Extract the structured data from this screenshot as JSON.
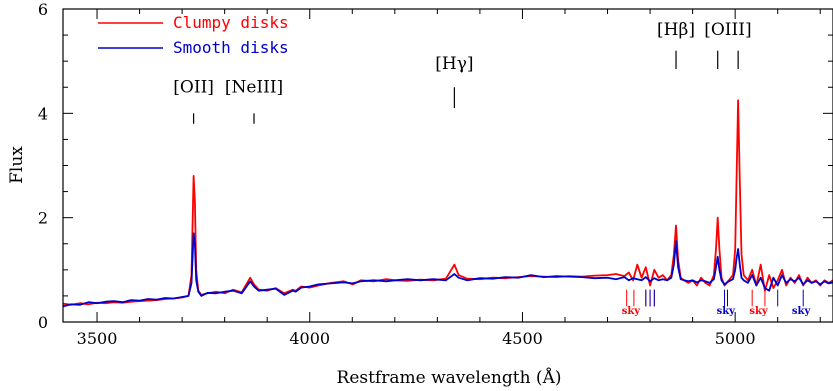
{
  "chart_data": {
    "type": "line",
    "xlabel": "Restframe wavelength (Å)",
    "ylabel": "Flux",
    "xlim": [
      3420,
      5230
    ],
    "ylim": [
      0,
      6
    ],
    "x_ticks": [
      3500,
      4000,
      4500,
      5000
    ],
    "y_ticks": [
      0,
      2,
      4,
      6
    ],
    "grid": false,
    "legend_position": "top-left",
    "colors": {
      "clumpy": "#ff0000",
      "smooth": "#0000cc"
    },
    "series": [
      {
        "name": "Clumpy disks",
        "color": "#ff0000",
        "x": [
          3420,
          3440,
          3460,
          3480,
          3500,
          3520,
          3540,
          3560,
          3580,
          3600,
          3620,
          3640,
          3660,
          3680,
          3700,
          3715,
          3722,
          3727,
          3730,
          3733,
          3738,
          3745,
          3760,
          3780,
          3800,
          3820,
          3840,
          3860,
          3869,
          3880,
          3900,
          3920,
          3940,
          3960,
          3967,
          3980,
          4000,
          4020,
          4050,
          4080,
          4101,
          4120,
          4150,
          4180,
          4200,
          4230,
          4260,
          4290,
          4320,
          4340,
          4350,
          4370,
          4400,
          4430,
          4460,
          4490,
          4520,
          4550,
          4580,
          4610,
          4640,
          4670,
          4700,
          4720,
          4740,
          4750,
          4760,
          4770,
          4780,
          4790,
          4800,
          4810,
          4820,
          4830,
          4840,
          4850,
          4856,
          4861,
          4866,
          4872,
          4880,
          4890,
          4900,
          4910,
          4920,
          4930,
          4940,
          4950,
          4955,
          4959,
          4963,
          4968,
          4975,
          4985,
          4995,
          5000,
          5003,
          5007,
          5011,
          5015,
          5020,
          5030,
          5040,
          5050,
          5060,
          5070,
          5080,
          5090,
          5100,
          5110,
          5120,
          5130,
          5140,
          5150,
          5160,
          5170,
          5180,
          5190,
          5200,
          5210,
          5220,
          5230
        ],
        "values": [
          0.35,
          0.33,
          0.36,
          0.34,
          0.37,
          0.36,
          0.38,
          0.37,
          0.39,
          0.4,
          0.41,
          0.42,
          0.44,
          0.45,
          0.47,
          0.5,
          0.9,
          2.8,
          2.3,
          1.0,
          0.6,
          0.52,
          0.55,
          0.58,
          0.55,
          0.62,
          0.57,
          0.85,
          0.72,
          0.62,
          0.6,
          0.65,
          0.55,
          0.62,
          0.6,
          0.68,
          0.66,
          0.7,
          0.75,
          0.78,
          0.72,
          0.8,
          0.78,
          0.82,
          0.8,
          0.79,
          0.81,
          0.8,
          0.83,
          1.1,
          0.9,
          0.83,
          0.82,
          0.85,
          0.84,
          0.86,
          0.88,
          0.87,
          0.86,
          0.88,
          0.87,
          0.89,
          0.9,
          0.92,
          0.88,
          0.95,
          0.8,
          1.1,
          0.85,
          1.05,
          0.7,
          1.0,
          0.85,
          0.9,
          0.8,
          0.9,
          1.3,
          1.85,
          1.2,
          0.85,
          0.8,
          0.75,
          0.8,
          0.7,
          0.85,
          0.75,
          0.7,
          0.9,
          1.4,
          2.0,
          1.4,
          0.85,
          0.7,
          0.8,
          0.9,
          1.4,
          2.6,
          4.25,
          2.7,
          1.3,
          0.9,
          0.8,
          1.0,
          0.7,
          1.1,
          0.6,
          0.9,
          0.65,
          0.8,
          1.0,
          0.7,
          0.85,
          0.75,
          0.9,
          0.7,
          0.85,
          0.75,
          0.8,
          0.7,
          0.8,
          0.75,
          0.8
        ],
        "line_labels_drawn": "see emission_lines"
      },
      {
        "name": "Smooth disks",
        "color": "#0000cc",
        "x": [
          3420,
          3440,
          3460,
          3480,
          3500,
          3520,
          3540,
          3560,
          3580,
          3600,
          3620,
          3640,
          3660,
          3680,
          3700,
          3715,
          3722,
          3727,
          3730,
          3733,
          3738,
          3745,
          3760,
          3780,
          3800,
          3820,
          3840,
          3860,
          3869,
          3880,
          3900,
          3920,
          3940,
          3960,
          3967,
          3980,
          4000,
          4020,
          4050,
          4080,
          4101,
          4120,
          4150,
          4180,
          4200,
          4230,
          4260,
          4290,
          4320,
          4340,
          4350,
          4370,
          4400,
          4430,
          4460,
          4490,
          4520,
          4550,
          4580,
          4610,
          4640,
          4670,
          4700,
          4720,
          4740,
          4750,
          4760,
          4770,
          4780,
          4790,
          4800,
          4810,
          4820,
          4830,
          4840,
          4850,
          4856,
          4861,
          4866,
          4872,
          4880,
          4890,
          4900,
          4910,
          4920,
          4930,
          4940,
          4950,
          4955,
          4959,
          4963,
          4968,
          4975,
          4985,
          4995,
          5000,
          5003,
          5007,
          5011,
          5015,
          5020,
          5030,
          5040,
          5050,
          5060,
          5070,
          5080,
          5090,
          5100,
          5110,
          5120,
          5130,
          5140,
          5150,
          5160,
          5170,
          5180,
          5190,
          5200,
          5210,
          5220,
          5230
        ],
        "values": [
          0.3,
          0.34,
          0.33,
          0.38,
          0.36,
          0.39,
          0.4,
          0.38,
          0.42,
          0.41,
          0.44,
          0.43,
          0.46,
          0.45,
          0.48,
          0.5,
          0.75,
          1.7,
          1.5,
          0.8,
          0.58,
          0.5,
          0.56,
          0.55,
          0.58,
          0.6,
          0.55,
          0.78,
          0.68,
          0.6,
          0.62,
          0.64,
          0.52,
          0.6,
          0.58,
          0.66,
          0.68,
          0.72,
          0.74,
          0.76,
          0.74,
          0.78,
          0.8,
          0.78,
          0.8,
          0.82,
          0.8,
          0.82,
          0.8,
          0.92,
          0.85,
          0.8,
          0.84,
          0.83,
          0.86,
          0.85,
          0.9,
          0.86,
          0.88,
          0.87,
          0.86,
          0.84,
          0.85,
          0.82,
          0.86,
          0.8,
          0.84,
          0.82,
          0.8,
          0.86,
          0.78,
          0.84,
          0.8,
          0.82,
          0.8,
          0.85,
          1.1,
          1.55,
          1.05,
          0.82,
          0.8,
          0.78,
          0.8,
          0.76,
          0.8,
          0.78,
          0.75,
          0.82,
          1.05,
          1.25,
          1.0,
          0.8,
          0.72,
          0.78,
          0.82,
          1.0,
          1.2,
          1.4,
          1.1,
          0.85,
          0.8,
          0.75,
          0.9,
          0.7,
          0.85,
          0.65,
          0.6,
          0.85,
          0.7,
          0.9,
          0.75,
          0.82,
          0.78,
          0.85,
          0.72,
          0.8,
          0.75,
          0.78,
          0.72,
          0.78,
          0.74,
          0.76
        ]
      }
    ],
    "emission_lines": [
      {
        "label": "[OII]",
        "wavelengths": [
          3727
        ],
        "tick_flux": [
          4.0,
          3.8
        ],
        "label_flux": 4.4
      },
      {
        "label": "[NeIII]",
        "wavelengths": [
          3869
        ],
        "tick_flux": [
          4.0,
          3.8
        ],
        "label_flux": 4.4
      },
      {
        "label": "[Hγ]",
        "wavelengths": [
          4340
        ],
        "tick_flux": [
          4.5,
          4.1
        ],
        "label_flux": 4.85
      },
      {
        "label": "[Hβ]",
        "wavelengths": [
          4861
        ],
        "tick_flux": [
          5.2,
          4.85
        ],
        "label_flux": 5.5
      },
      {
        "label": "[OIII]",
        "wavelengths": [
          4959,
          5007
        ],
        "tick_flux": [
          5.2,
          4.85
        ],
        "label_flux": 5.5
      }
    ],
    "sky_markers": [
      {
        "label": "sky",
        "color": "#ff0000",
        "ticks": [
          4745,
          4762,
          4790,
          4800,
          4810
        ],
        "label_x": 4755
      },
      {
        "label": "sky",
        "color": "#ff0000",
        "ticks": [
          5040,
          5070
        ],
        "label_x": 5055
      },
      {
        "label": "sky",
        "color": "#0000cc",
        "ticks": [
          4790,
          4800,
          4810,
          4975,
          4982
        ],
        "label_x": 4978
      },
      {
        "label": "sky",
        "color": "#0000cc",
        "ticks": [
          5100,
          5160
        ],
        "label_x": 5155
      }
    ]
  }
}
